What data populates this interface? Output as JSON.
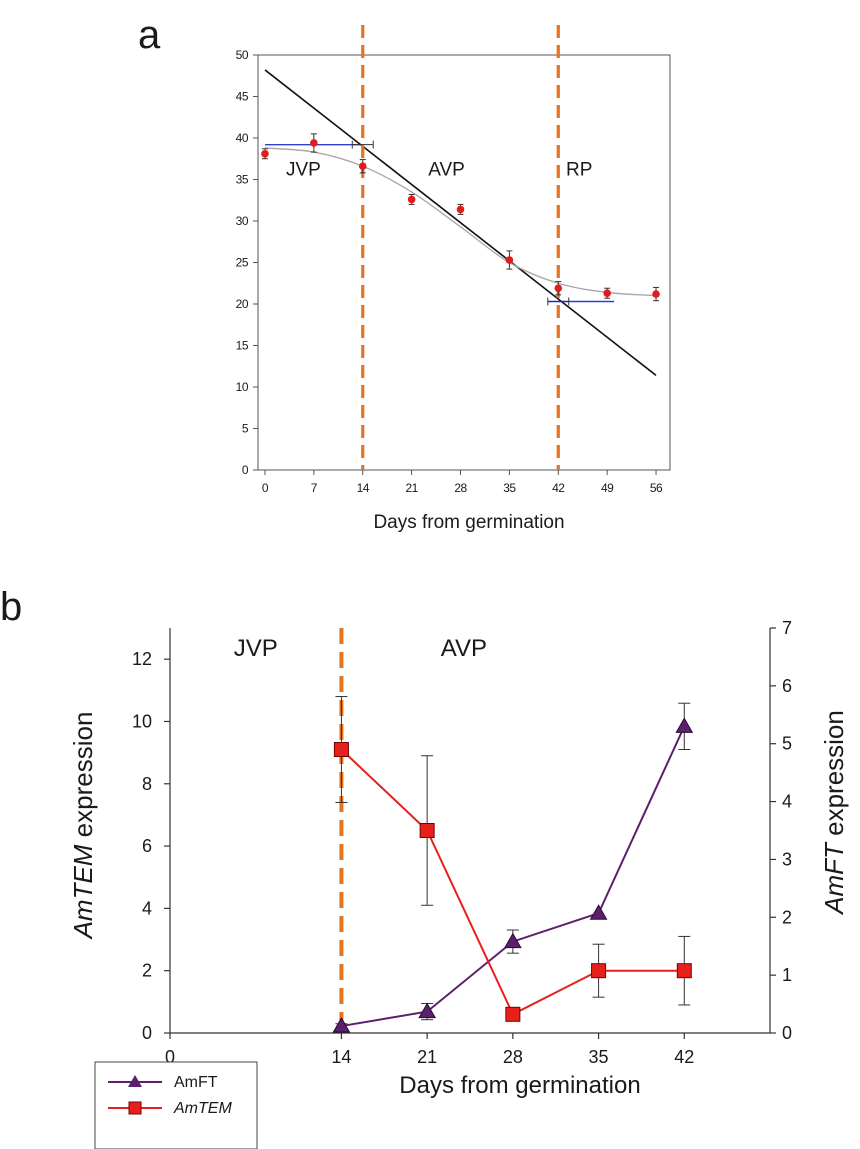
{
  "chart_data": [
    {
      "panel_label": "a",
      "type": "scatter",
      "xlabel": "Days from germination",
      "ylabel": "",
      "xlim": [
        -1,
        58
      ],
      "ylim": [
        0,
        50
      ],
      "x_ticks": [
        0,
        7,
        14,
        21,
        28,
        35,
        42,
        49,
        56
      ],
      "y_ticks": [
        0,
        5,
        10,
        15,
        20,
        25,
        30,
        35,
        40,
        45,
        50
      ],
      "grid": false,
      "phase_labels": [
        {
          "text": "JVP",
          "x": 5.5,
          "y": 35.5
        },
        {
          "text": "AVP",
          "x": 26,
          "y": 35.5
        },
        {
          "text": "RP",
          "x": 45,
          "y": 35.5
        }
      ],
      "phase_boundaries": [
        14,
        42
      ],
      "points": {
        "x": [
          0,
          7,
          14,
          21,
          28,
          35,
          42,
          49,
          56
        ],
        "y": [
          38.1,
          39.4,
          36.6,
          32.6,
          31.4,
          25.3,
          21.9,
          21.3,
          21.2
        ],
        "err": [
          0.6,
          1.1,
          0.8,
          0.6,
          0.6,
          1.1,
          0.8,
          0.6,
          0.8
        ]
      },
      "linear_fit": {
        "x": [
          0,
          56
        ],
        "y": [
          48.2,
          11.4
        ]
      },
      "sigmoid_fit": {
        "x": [
          0,
          7,
          14,
          21,
          28,
          35,
          42,
          49,
          56
        ],
        "y": [
          38.8,
          38.3,
          36.6,
          33.5,
          29.3,
          25.0,
          22.5,
          21.4,
          21.0
        ]
      },
      "horizontal_segments": [
        {
          "y": 39.2,
          "x_from": 0,
          "x_to": 14,
          "x_err": [
            12.5,
            15.5
          ]
        },
        {
          "y": 20.3,
          "x_from": 40.5,
          "x_to": 50,
          "x_err": [
            40.5,
            43.5
          ]
        }
      ]
    },
    {
      "panel_label": "b",
      "type": "line",
      "xlabel": "Days from germination",
      "y_left_label": {
        "italic": "AmTEM",
        "plain": " expression"
      },
      "y_right_label": {
        "italic": "AmFT",
        "plain": " expression"
      },
      "xlim": [
        0,
        49
      ],
      "x_ticks": [
        0,
        14,
        21,
        28,
        35,
        42
      ],
      "y_left_lim": [
        0,
        13
      ],
      "y_left_ticks": [
        0,
        2,
        4,
        6,
        8,
        10,
        12
      ],
      "y_right_lim": [
        0,
        7
      ],
      "y_right_ticks": [
        0,
        1,
        2,
        3,
        4,
        5,
        6,
        7
      ],
      "phase_labels": [
        {
          "text": "JVP",
          "x": 7,
          "y": 12.1
        },
        {
          "text": "AVP",
          "x": 24,
          "y": 12.1
        }
      ],
      "phase_boundaries": [
        14
      ],
      "series": [
        {
          "name": "AmFT",
          "axis": "right",
          "marker": "triangle",
          "color": "#5b1f6b",
          "x": [
            14,
            21,
            28,
            35,
            42
          ],
          "values": [
            0.12,
            0.37,
            1.58,
            2.07,
            5.3
          ],
          "err": [
            0.04,
            0.14,
            0.2,
            0.0,
            0.4
          ]
        },
        {
          "name": "AmTEM",
          "axis": "left",
          "marker": "square",
          "color": "#e8201c",
          "x": [
            14,
            21,
            28,
            35,
            42
          ],
          "values": [
            9.1,
            6.5,
            0.6,
            2.0,
            2.0
          ],
          "err": [
            1.7,
            2.4,
            0.0,
            0.85,
            1.1
          ]
        }
      ],
      "legend": {
        "placement": "bottom-left",
        "entries": [
          {
            "label": "AmFT",
            "italic": false
          },
          {
            "label": "AmTEM",
            "italic": true
          }
        ]
      }
    }
  ],
  "colors": {
    "phase_line": "#e6731e",
    "linear_fit": "#111111",
    "sigmoid_fit": "#a9a9a9",
    "points": "#e21b1b",
    "horizontal_segments": "#2f3fd6",
    "axis": "#333333"
  }
}
